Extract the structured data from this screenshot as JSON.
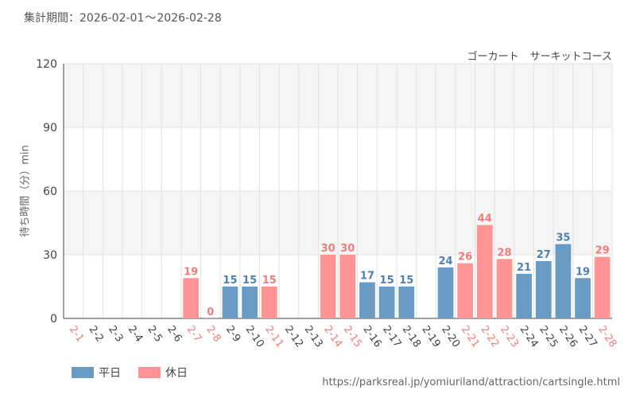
{
  "header": {
    "period_label": "集計期間",
    "period_colon": "：",
    "period_start": "2026-02-01",
    "period_tilde": "～",
    "period_end": "2026-02-28"
  },
  "colors": {
    "weekday": "#6a9bc4",
    "holiday": "#ff9494",
    "weekday_text": "#4e80b0",
    "holiday_text": "#f07c7c",
    "band": "#f5f5f5",
    "grid": "#e2e2e2",
    "axis": "#444444"
  },
  "chart_data": {
    "type": "bar",
    "title": "ゴーカート　サーキットコース",
    "title_parts": [
      "ゴーカート",
      "サーキットコース"
    ],
    "xlabel": "",
    "ylabel": "待ち時間（分）min",
    "ylim": [
      0,
      120
    ],
    "yticks": [
      0,
      30,
      60,
      90,
      120
    ],
    "categories": [
      "2-1",
      "2-2",
      "2-3",
      "2-4",
      "2-5",
      "2-6",
      "2-7",
      "2-8",
      "2-9",
      "2-10",
      "2-11",
      "2-12",
      "2-13",
      "2-14",
      "2-15",
      "2-16",
      "2-17",
      "2-18",
      "2-19",
      "2-20",
      "2-21",
      "2-22",
      "2-23",
      "2-24",
      "2-25",
      "2-26",
      "2-27",
      "2-28"
    ],
    "values": [
      null,
      null,
      null,
      null,
      null,
      null,
      19,
      0,
      15,
      15,
      15,
      null,
      null,
      30,
      30,
      17,
      15,
      15,
      null,
      24,
      26,
      44,
      28,
      21,
      27,
      35,
      19,
      29
    ],
    "day_type": [
      "holiday",
      "weekday",
      "weekday",
      "weekday",
      "weekday",
      "weekday",
      "holiday",
      "holiday",
      "weekday",
      "weekday",
      "holiday",
      "weekday",
      "weekday",
      "holiday",
      "holiday",
      "weekday",
      "weekday",
      "weekday",
      "weekday",
      "weekday",
      "holiday",
      "holiday",
      "holiday",
      "weekday",
      "weekday",
      "weekday",
      "weekday",
      "holiday"
    ],
    "legend": [
      {
        "key": "weekday",
        "label": "平日"
      },
      {
        "key": "holiday",
        "label": "休日"
      }
    ],
    "legend_position": "bottom-left",
    "grid": true
  },
  "footer": {
    "source_url": "https://parksreal.jp/yomiuriland/attraction/cartsingle.html"
  }
}
